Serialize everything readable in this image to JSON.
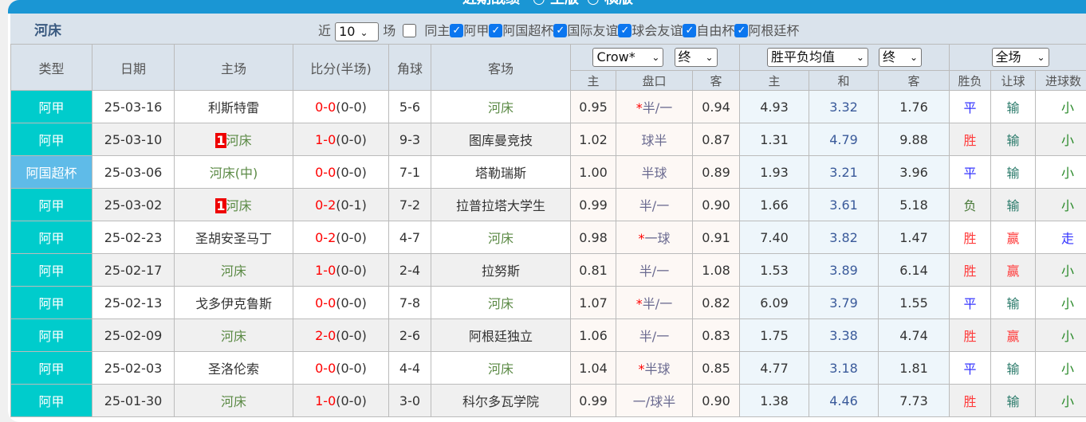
{
  "header": {
    "title": "近期战绩",
    "radio1": "主版",
    "radio2": "横版"
  },
  "filter": {
    "team": "河床",
    "near_label": "近",
    "count": "10",
    "games_label": "场",
    "options": [
      {
        "label": "同主",
        "checked": false
      },
      {
        "label": "阿甲",
        "checked": true
      },
      {
        "label": "阿国超杯",
        "checked": true
      },
      {
        "label": "国际友谊",
        "checked": true
      },
      {
        "label": "球会友谊",
        "checked": true
      },
      {
        "label": "自由杯",
        "checked": true
      },
      {
        "label": "阿根廷杯",
        "checked": true
      }
    ]
  },
  "columns": {
    "type": "类型",
    "date": "日期",
    "home": "主场",
    "score": "比分(半场)",
    "corner": "角球",
    "away": "客场",
    "company": "Crow*",
    "stage1": "终",
    "avg": "胜平负均值",
    "stage2": "终",
    "scope": "全场",
    "h_home": "主",
    "h_line": "盘口",
    "h_away": "客",
    "a_home": "主",
    "a_draw": "和",
    "a_away": "客",
    "r_wl": "胜负",
    "r_ah": "让球",
    "r_ou": "进球数"
  },
  "colors": {
    "league": "#00cccc",
    "cup": "#5fbbe8",
    "header_bar": "#1a96d4"
  },
  "rows": [
    {
      "type": "阿甲",
      "date": "25-03-16",
      "home": "利斯特雷",
      "home_badge": "",
      "score": "0-0",
      "half": "(0-0)",
      "corner": "5-6",
      "away": "河床",
      "o1": "0.95",
      "star": "*",
      "line": "半/一",
      "o2": "0.94",
      "a1": "4.93",
      "a2": "3.32",
      "a3": "1.76",
      "wl": "平",
      "ah": "输",
      "ou": "小"
    },
    {
      "type": "阿甲",
      "date": "25-03-10",
      "home": "河床",
      "home_badge": "1",
      "score": "1-0",
      "half": "(0-0)",
      "corner": "9-3",
      "away": "图库曼竞技",
      "o1": "1.02",
      "star": "",
      "line": "球半",
      "o2": "0.87",
      "a1": "1.31",
      "a2": "4.79",
      "a3": "9.88",
      "wl": "胜",
      "ah": "输",
      "ou": "小"
    },
    {
      "type": "阿国超杯",
      "date": "25-03-06",
      "home": "河床(中)",
      "home_badge": "",
      "score": "0-0",
      "half": "(0-0)",
      "corner": "7-1",
      "away": "塔勒瑞斯",
      "o1": "1.00",
      "star": "",
      "line": "半球",
      "o2": "0.89",
      "a1": "1.93",
      "a2": "3.21",
      "a3": "3.96",
      "wl": "平",
      "ah": "输",
      "ou": "小"
    },
    {
      "type": "阿甲",
      "date": "25-03-02",
      "home": "河床",
      "home_badge": "1",
      "score": "0-2",
      "half": "(0-1)",
      "corner": "7-2",
      "away": "拉普拉塔大学生",
      "o1": "0.99",
      "star": "",
      "line": "半/一",
      "o2": "0.90",
      "a1": "1.66",
      "a2": "3.61",
      "a3": "5.18",
      "wl": "负",
      "ah": "输",
      "ou": "小"
    },
    {
      "type": "阿甲",
      "date": "25-02-23",
      "home": "圣胡安圣马丁",
      "home_badge": "",
      "score": "0-2",
      "half": "(0-0)",
      "corner": "4-7",
      "away": "河床",
      "o1": "0.98",
      "star": "*",
      "line": "一球",
      "o2": "0.91",
      "a1": "7.40",
      "a2": "3.82",
      "a3": "1.47",
      "wl": "胜",
      "ah": "赢",
      "ou": "走"
    },
    {
      "type": "阿甲",
      "date": "25-02-17",
      "home": "河床",
      "home_badge": "",
      "score": "1-0",
      "half": "(0-0)",
      "corner": "2-4",
      "away": "拉努斯",
      "o1": "0.81",
      "star": "",
      "line": "半/一",
      "o2": "1.08",
      "a1": "1.53",
      "a2": "3.89",
      "a3": "6.14",
      "wl": "胜",
      "ah": "赢",
      "ou": "小"
    },
    {
      "type": "阿甲",
      "date": "25-02-13",
      "home": "戈多伊克鲁斯",
      "home_badge": "",
      "score": "0-0",
      "half": "(0-0)",
      "corner": "7-8",
      "away": "河床",
      "o1": "1.07",
      "star": "*",
      "line": "半/一",
      "o2": "0.82",
      "a1": "6.09",
      "a2": "3.79",
      "a3": "1.55",
      "wl": "平",
      "ah": "输",
      "ou": "小"
    },
    {
      "type": "阿甲",
      "date": "25-02-09",
      "home": "河床",
      "home_badge": "",
      "score": "2-0",
      "half": "(0-0)",
      "corner": "2-6",
      "away": "阿根廷独立",
      "o1": "1.06",
      "star": "",
      "line": "半/一",
      "o2": "0.83",
      "a1": "1.75",
      "a2": "3.38",
      "a3": "4.74",
      "wl": "胜",
      "ah": "赢",
      "ou": "小"
    },
    {
      "type": "阿甲",
      "date": "25-02-03",
      "home": "圣洛伦索",
      "home_badge": "",
      "score": "0-0",
      "half": "(0-0)",
      "corner": "4-4",
      "away": "河床",
      "o1": "1.04",
      "star": "*",
      "line": "半球",
      "o2": "0.85",
      "a1": "4.77",
      "a2": "3.18",
      "a3": "1.81",
      "wl": "平",
      "ah": "输",
      "ou": "小"
    },
    {
      "type": "阿甲",
      "date": "25-01-30",
      "home": "河床",
      "home_badge": "",
      "score": "1-0",
      "half": "(0-0)",
      "corner": "3-0",
      "away": "科尔多瓦学院",
      "o1": "0.99",
      "star": "",
      "line": "一/球半",
      "o2": "0.90",
      "a1": "1.38",
      "a2": "4.46",
      "a3": "7.73",
      "wl": "胜",
      "ah": "输",
      "ou": "小"
    }
  ]
}
